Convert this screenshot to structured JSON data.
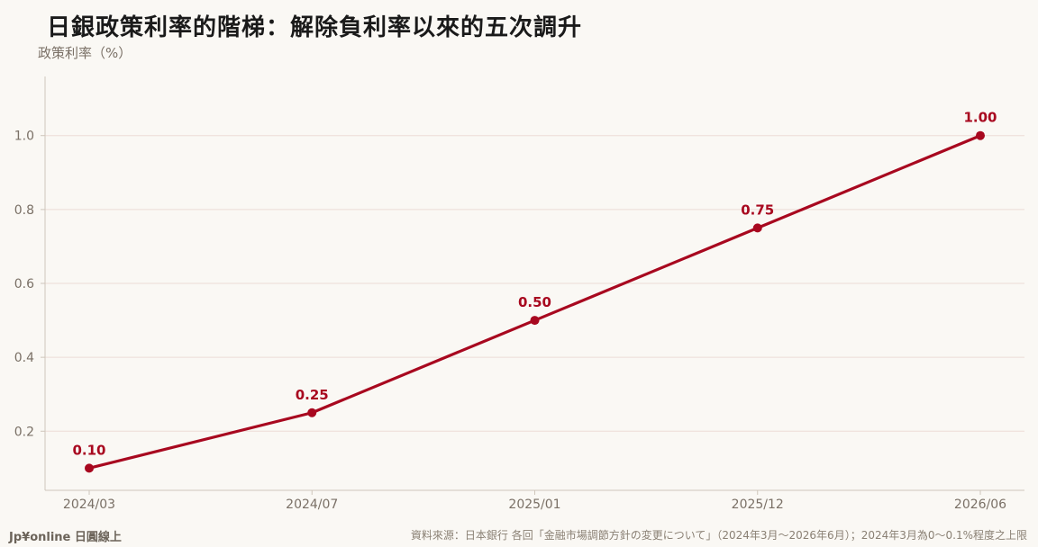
{
  "colors": {
    "line": "#a8081f",
    "label": "#a8081f",
    "axis_text": "#7a7066",
    "grid": "#ecdcd6",
    "axis": "#cfc6bb",
    "background": "#faf8f4"
  },
  "chart_data": {
    "type": "line",
    "title": "日銀政策利率的階梯：解除負利率以來的五次調升",
    "ylabel": "政策利率（%）",
    "xlabel": "",
    "x": [
      "2024/03",
      "2024/07",
      "2025/01",
      "2025/12",
      "2026/06"
    ],
    "series": [
      {
        "values": [
          0.1,
          0.25,
          0.5,
          0.75,
          1.0
        ],
        "data_labels": [
          "0.10",
          "0.25",
          "0.50",
          "0.75",
          "1.00"
        ]
      }
    ],
    "yticks": [
      "0.2",
      "0.4",
      "0.6",
      "0.8",
      "1.0"
    ],
    "ylim": [
      0.04,
      1.16
    ],
    "grid": true,
    "legend": "none"
  },
  "footer": {
    "brand": "Jp¥online 日圓線上",
    "source": "資料來源：日本銀行 各回「金融市場調節方針の変更について」（2024年3月〜2026年6月）；2024年3月為0〜0.1%程度之上限"
  }
}
